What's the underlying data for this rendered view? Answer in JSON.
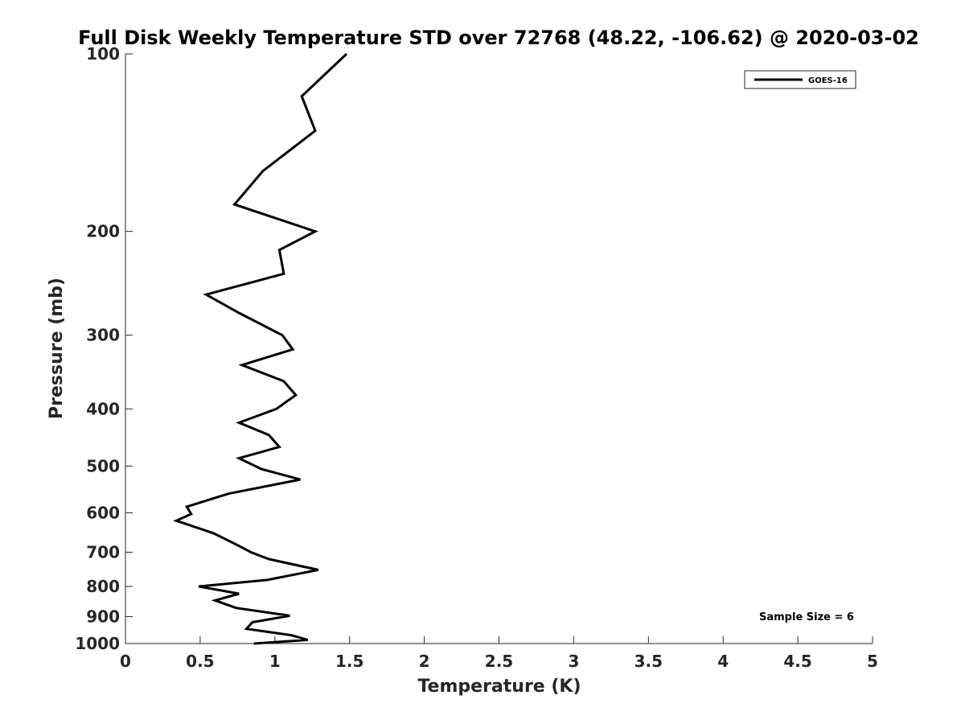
{
  "chart_data": {
    "type": "line",
    "title": "Full Disk Weekly Temperature STD over 72768 (48.22, -106.62) @ 2020-03-02",
    "xlabel": "Temperature (K)",
    "ylabel": "Pressure (mb)",
    "xlim": [
      0,
      5
    ],
    "ylim": [
      100,
      1000
    ],
    "y_scale": "log",
    "y_reversed": true,
    "x_ticks": [
      "0",
      "0.5",
      "1",
      "1.5",
      "2",
      "2.5",
      "3",
      "3.5",
      "4",
      "4.5",
      "5"
    ],
    "x_tick_values": [
      0,
      0.5,
      1,
      1.5,
      2,
      2.5,
      3,
      3.5,
      4,
      4.5,
      5
    ],
    "y_ticks": [
      "100",
      "200",
      "300",
      "400",
      "500",
      "600",
      "700",
      "800",
      "900",
      "1000"
    ],
    "y_tick_values": [
      100,
      200,
      300,
      400,
      500,
      600,
      700,
      800,
      900,
      1000
    ],
    "grid": false,
    "legend_position": "top-right",
    "series": [
      {
        "name": "GOES-16",
        "color": "#000000",
        "points": [
          [
            1.48,
            100
          ],
          [
            1.18,
            118
          ],
          [
            1.27,
            135
          ],
          [
            0.92,
            158
          ],
          [
            0.73,
            180
          ],
          [
            1.27,
            200
          ],
          [
            1.03,
            215
          ],
          [
            1.06,
            236
          ],
          [
            0.54,
            256
          ],
          [
            0.76,
            275
          ],
          [
            1.05,
            300
          ],
          [
            1.12,
            317
          ],
          [
            0.78,
            337
          ],
          [
            1.06,
            359
          ],
          [
            1.14,
            379
          ],
          [
            1.01,
            400
          ],
          [
            0.76,
            422
          ],
          [
            0.96,
            443
          ],
          [
            1.03,
            464
          ],
          [
            0.76,
            485
          ],
          [
            0.91,
            506
          ],
          [
            1.17,
            527
          ],
          [
            0.69,
            557
          ],
          [
            0.41,
            586
          ],
          [
            0.44,
            603
          ],
          [
            0.34,
            619
          ],
          [
            0.59,
            650
          ],
          [
            0.75,
            681
          ],
          [
            0.84,
            700
          ],
          [
            0.96,
            719
          ],
          [
            1.29,
            750
          ],
          [
            0.95,
            780
          ],
          [
            0.49,
            800
          ],
          [
            0.76,
            823
          ],
          [
            0.6,
            845
          ],
          [
            0.74,
            870
          ],
          [
            1.1,
            897
          ],
          [
            0.85,
            920
          ],
          [
            0.81,
            944
          ],
          [
            1.11,
            968
          ],
          [
            1.22,
            986
          ],
          [
            0.86,
            1000
          ]
        ]
      }
    ],
    "annotations": [
      "Sample Size = 6"
    ]
  }
}
